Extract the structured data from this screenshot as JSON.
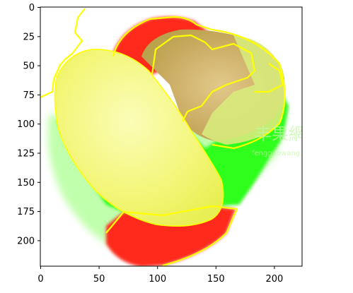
{
  "figure": {
    "kind": "matplotlib image display of a segmentation overlay",
    "colors": {
      "mango": "#f4f77a",
      "mango_light": "#fbfcb0",
      "red_region": "#ff2a1a",
      "green_region": "#33ff22",
      "green_light": "#9cff8a",
      "outline": "#ffff00",
      "passion_fruit": "#c9b36b"
    },
    "watermark_text": "丰果網",
    "watermark_sub": "fengguowang.com"
  },
  "axes": {
    "x_ticks": [
      "0",
      "50",
      "100",
      "150",
      "200"
    ],
    "y_ticks": [
      "0",
      "25",
      "50",
      "75",
      "100",
      "125",
      "150",
      "175",
      "200"
    ],
    "x_range": [
      0,
      224
    ],
    "y_range": [
      224,
      0
    ]
  }
}
